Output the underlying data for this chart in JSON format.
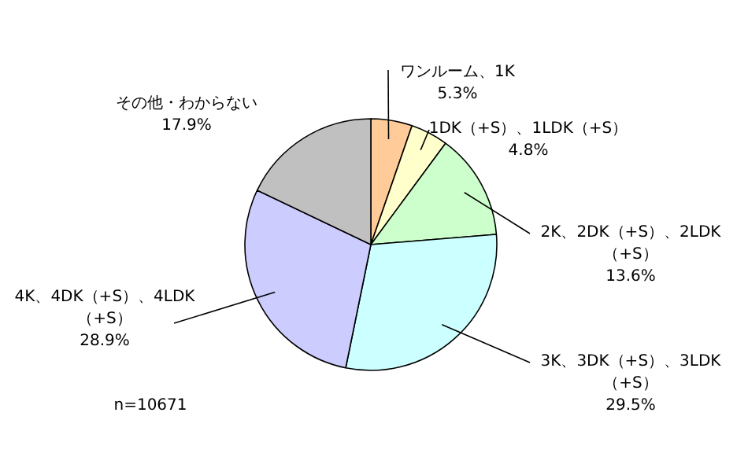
{
  "chart_data": {
    "type": "pie",
    "categories": [
      "ワンルーム、1K",
      "1DK（+S）、1LDK（+S）",
      "2K、2DK（+S）、2LDK（+S）",
      "3K、3DK（+S）、3LDK（+S）",
      "4K、4DK（+S）、4LDK（+S）",
      "その他・わからない"
    ],
    "values": [
      5.3,
      4.8,
      13.6,
      29.5,
      28.9,
      17.9
    ],
    "colors": [
      "#ffcc99",
      "#ffffcc",
      "#ccffcc",
      "#ccffff",
      "#ccccff",
      "#c0c0c0"
    ],
    "value_labels": [
      "5.3%",
      "4.8%",
      "13.6%",
      "29.5%",
      "28.9%",
      "17.9%"
    ],
    "annotations": [
      "n=10671"
    ]
  }
}
